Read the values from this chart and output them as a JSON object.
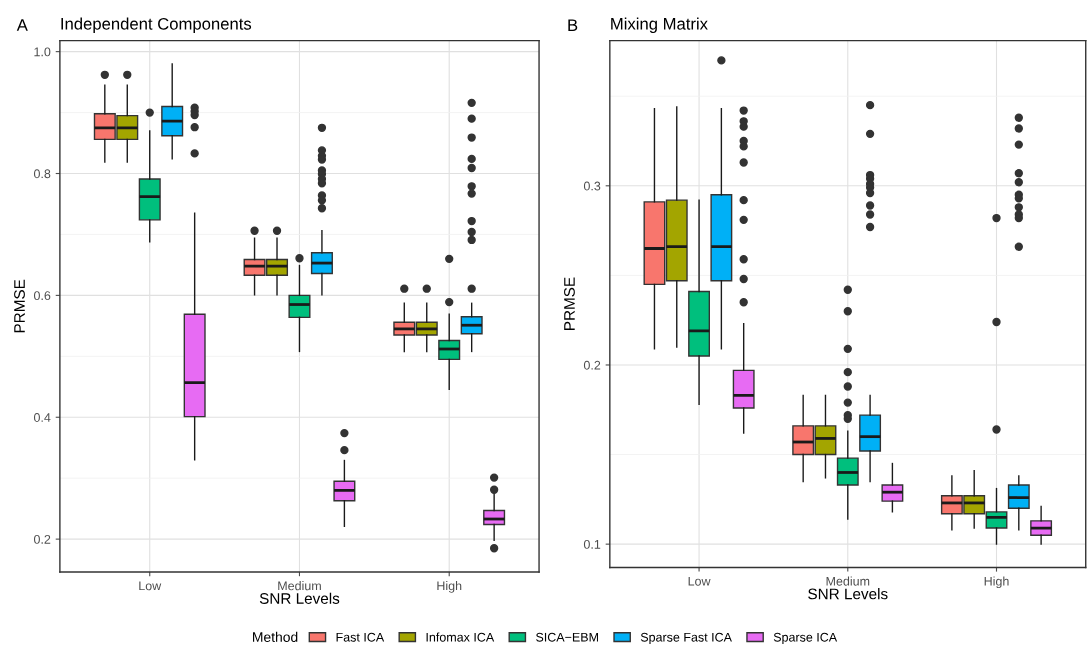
{
  "chart_data": [
    {
      "type": "box",
      "title": "Independent Components",
      "annotations": [
        "A"
      ],
      "xlabel": "SNR Levels",
      "ylabel": "PRMSE",
      "categories": [
        "Low",
        "Medium",
        "High"
      ],
      "ylim": [
        0.146,
        1.018
      ],
      "yticks": [
        {
          "value": 0.2,
          "label": "0.2"
        },
        {
          "value": 0.4,
          "label": "0.4"
        },
        {
          "value": 0.6,
          "label": "0.6"
        },
        {
          "value": 0.8,
          "label": "0.8"
        },
        {
          "value": 1.0,
          "label": "1.0"
        }
      ],
      "grid": true,
      "legend": "bottom",
      "legend_title": "Method",
      "series": [
        {
          "name": "Fast ICA",
          "color": "#f8766d",
          "boxes": [
            {
              "low": 0.819,
              "q1": 0.856,
              "median": 0.875,
              "q3": 0.898,
              "high": 0.945,
              "outliers": [
                0.962
              ]
            },
            {
              "low": 0.601,
              "q1": 0.633,
              "median": 0.648,
              "q3": 0.659,
              "high": 0.694,
              "outliers": [
                0.706
              ]
            },
            {
              "low": 0.508,
              "q1": 0.535,
              "median": 0.545,
              "q3": 0.556,
              "high": 0.587,
              "outliers": [
                0.611
              ]
            }
          ]
        },
        {
          "name": "Infomax ICA",
          "color": "#a3a500",
          "boxes": [
            {
              "low": 0.819,
              "q1": 0.856,
              "median": 0.875,
              "q3": 0.895,
              "high": 0.945,
              "outliers": [
                0.962
              ]
            },
            {
              "low": 0.601,
              "q1": 0.633,
              "median": 0.648,
              "q3": 0.659,
              "high": 0.694,
              "outliers": [
                0.706
              ]
            },
            {
              "low": 0.508,
              "q1": 0.535,
              "median": 0.545,
              "q3": 0.556,
              "high": 0.587,
              "outliers": [
                0.611
              ]
            }
          ]
        },
        {
          "name": "SICA−EBM",
          "color": "#00bf7d",
          "boxes": [
            {
              "low": 0.688,
              "q1": 0.724,
              "median": 0.762,
              "q3": 0.791,
              "high": 0.87,
              "outliers": [
                0.9
              ]
            },
            {
              "low": 0.508,
              "q1": 0.564,
              "median": 0.585,
              "q3": 0.6,
              "high": 0.649,
              "outliers": [
                0.661
              ]
            },
            {
              "low": 0.446,
              "q1": 0.495,
              "median": 0.512,
              "q3": 0.526,
              "high": 0.569,
              "outliers": [
                0.66,
                0.589
              ]
            }
          ]
        },
        {
          "name": "Sparse Fast ICA",
          "color": "#00b0f6",
          "boxes": [
            {
              "low": 0.824,
              "q1": 0.862,
              "median": 0.886,
              "q3": 0.91,
              "high": 0.98
            },
            {
              "low": 0.601,
              "q1": 0.636,
              "median": 0.653,
              "q3": 0.67,
              "high": 0.706,
              "outliers": [
                0.875,
                0.838,
                0.829,
                0.823,
                0.805,
                0.799,
                0.791,
                0.784,
                0.764,
                0.756,
                0.743
              ]
            },
            {
              "low": 0.508,
              "q1": 0.537,
              "median": 0.551,
              "q3": 0.565,
              "high": 0.587,
              "outliers": [
                0.916,
                0.89,
                0.859,
                0.824,
                0.809,
                0.779,
                0.767,
                0.722,
                0.704,
                0.691,
                0.611
              ]
            }
          ]
        },
        {
          "name": "Sparse ICA",
          "color": "#e76bf3",
          "boxes": [
            {
              "low": 0.33,
              "q1": 0.401,
              "median": 0.457,
              "q3": 0.569,
              "high": 0.735,
              "outliers": [
                0.908,
                0.902,
                0.896,
                0.876,
                0.833
              ]
            },
            {
              "low": 0.221,
              "q1": 0.263,
              "median": 0.28,
              "q3": 0.295,
              "high": 0.329,
              "outliers": [
                0.374,
                0.346
              ]
            },
            {
              "low": 0.198,
              "q1": 0.224,
              "median": 0.233,
              "q3": 0.247,
              "high": 0.275,
              "outliers": [
                0.301,
                0.281,
                0.185
              ]
            }
          ]
        }
      ]
    },
    {
      "type": "box",
      "title": "Mixing Matrix",
      "annotations": [
        "B"
      ],
      "xlabel": "SNR Levels",
      "ylabel": "PRMSE",
      "categories": [
        "Low",
        "Medium",
        "High"
      ],
      "ylim": [
        0.087,
        0.381
      ],
      "yticks": [
        {
          "value": 0.1,
          "label": "0.1"
        },
        {
          "value": 0.2,
          "label": "0.2"
        },
        {
          "value": 0.3,
          "label": "0.3"
        }
      ],
      "grid": true,
      "series": [
        {
          "name": "Fast ICA",
          "color": "#f8766d",
          "boxes": [
            {
              "low": 0.209,
              "q1": 0.245,
              "median": 0.265,
              "q3": 0.291,
              "high": 0.343
            },
            {
              "low": 0.135,
              "q1": 0.15,
              "median": 0.157,
              "q3": 0.166,
              "high": 0.183
            },
            {
              "low": 0.108,
              "q1": 0.117,
              "median": 0.123,
              "q3": 0.127,
              "high": 0.138
            }
          ]
        },
        {
          "name": "Infomax ICA",
          "color": "#a3a500",
          "boxes": [
            {
              "low": 0.21,
              "q1": 0.247,
              "median": 0.266,
              "q3": 0.292,
              "high": 0.344
            },
            {
              "low": 0.137,
              "q1": 0.15,
              "median": 0.159,
              "q3": 0.166,
              "high": 0.183
            },
            {
              "low": 0.109,
              "q1": 0.117,
              "median": 0.123,
              "q3": 0.127,
              "high": 0.141
            }
          ]
        },
        {
          "name": "SICA−EBM",
          "color": "#00bf7d",
          "boxes": [
            {
              "low": 0.178,
              "q1": 0.205,
              "median": 0.219,
              "q3": 0.241,
              "high": 0.292
            },
            {
              "low": 0.114,
              "q1": 0.133,
              "median": 0.14,
              "q3": 0.148,
              "high": 0.163,
              "outliers": [
                0.242,
                0.23,
                0.209,
                0.196,
                0.188,
                0.179,
                0.172,
                0.17
              ]
            },
            {
              "low": 0.1,
              "q1": 0.109,
              "median": 0.115,
              "q3": 0.118,
              "high": 0.131,
              "outliers": [
                0.282,
                0.224,
                0.164
              ]
            }
          ]
        },
        {
          "name": "Sparse Fast ICA",
          "color": "#00b0f6",
          "boxes": [
            {
              "low": 0.209,
              "q1": 0.247,
              "median": 0.266,
              "q3": 0.295,
              "high": 0.343,
              "outliers": [
                0.37
              ]
            },
            {
              "low": 0.135,
              "q1": 0.152,
              "median": 0.16,
              "q3": 0.172,
              "high": 0.183,
              "outliers": [
                0.345,
                0.329,
                0.306,
                0.304,
                0.301,
                0.299,
                0.296,
                0.289,
                0.284,
                0.277
              ]
            },
            {
              "low": 0.108,
              "q1": 0.12,
              "median": 0.126,
              "q3": 0.133,
              "high": 0.138,
              "outliers": [
                0.338,
                0.332,
                0.323,
                0.307,
                0.302,
                0.295,
                0.293,
                0.288,
                0.284,
                0.282,
                0.266
              ]
            }
          ]
        },
        {
          "name": "Sparse ICA",
          "color": "#e76bf3",
          "boxes": [
            {
              "low": 0.162,
              "q1": 0.176,
              "median": 0.183,
              "q3": 0.197,
              "high": 0.223,
              "outliers": [
                0.342,
                0.336,
                0.333,
                0.325,
                0.322,
                0.313,
                0.292,
                0.281,
                0.259,
                0.248,
                0.235
              ]
            },
            {
              "low": 0.118,
              "q1": 0.124,
              "median": 0.129,
              "q3": 0.133,
              "high": 0.145
            },
            {
              "low": 0.1,
              "q1": 0.105,
              "median": 0.109,
              "q3": 0.113,
              "high": 0.121
            }
          ]
        }
      ]
    }
  ]
}
